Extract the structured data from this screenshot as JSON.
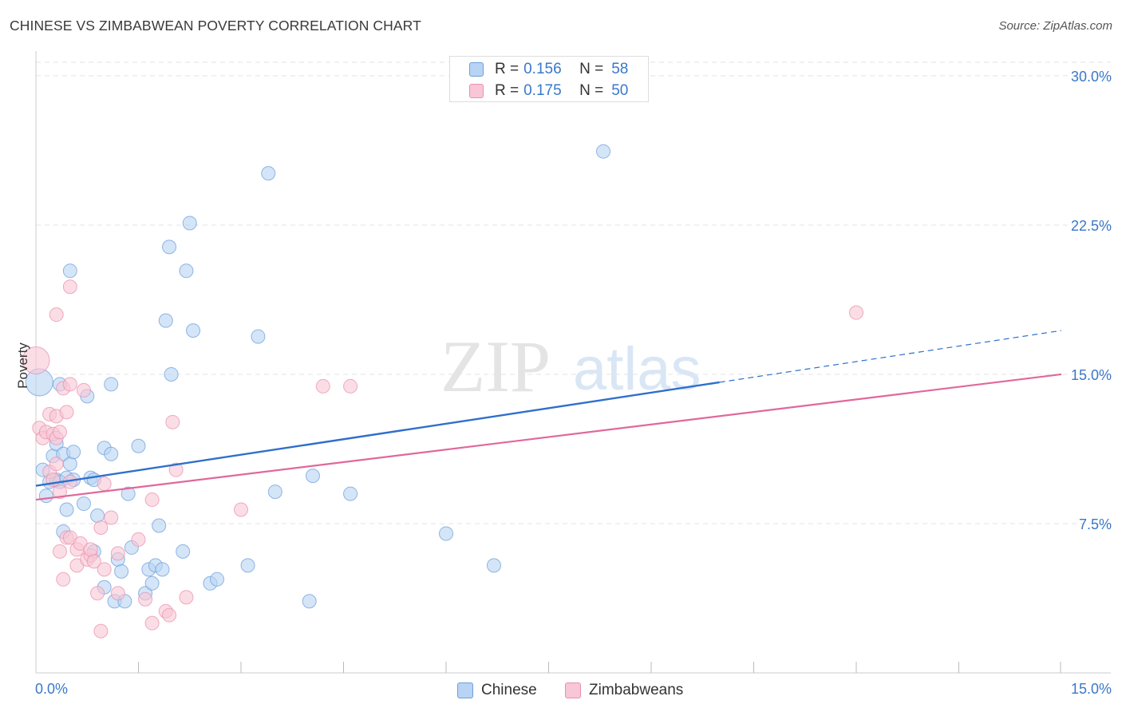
{
  "title": "CHINESE VS ZIMBABWEAN POVERTY CORRELATION CHART",
  "source": "Source: ZipAtlas.com",
  "watermark": {
    "zip": "ZIP",
    "atlas": "atlas"
  },
  "colors": {
    "chinese_fill": "#b8d3f4",
    "chinese_stroke": "#6e9fdb",
    "chinese_line": "#2f6fcb",
    "zimbabwean_fill": "#f8c6d6",
    "zimbabwean_stroke": "#e991ac",
    "zimbabwean_line": "#e0689a",
    "axis_label": "#3a78c9",
    "grid": "#e3e3e3"
  },
  "legend_top": {
    "rows": [
      {
        "r_label": "R =",
        "r_value": "0.156",
        "n_label": "N =",
        "n_value": "58"
      },
      {
        "r_label": "R =",
        "r_value": "0.175",
        "n_label": "N =",
        "n_value": "50"
      }
    ]
  },
  "legend_bottom": [
    "Chinese",
    "Zimbabweans"
  ],
  "chart_data": {
    "type": "scatter",
    "title": "CHINESE VS ZIMBABWEAN POVERTY CORRELATION CHART",
    "xlabel": "",
    "ylabel": "Poverty",
    "xlim": [
      0,
      15
    ],
    "ylim": [
      0,
      31
    ],
    "x_tick_labels": [
      {
        "value": 0,
        "label": "0.0%"
      },
      {
        "value": 15,
        "label": "15.0%"
      }
    ],
    "y_tick_labels": [
      {
        "value": 7.5,
        "label": "7.5%"
      },
      {
        "value": 15,
        "label": "15.0%"
      },
      {
        "value": 22.5,
        "label": "22.5%"
      },
      {
        "value": 30,
        "label": "30.0%"
      }
    ],
    "x_minor_ticks": [
      1.5,
      3,
      4.5,
      6,
      7.5,
      9,
      10.5,
      12,
      13.5,
      15
    ],
    "series": [
      {
        "name": "Chinese",
        "r": 0.156,
        "n": 58,
        "trend": {
          "x0": 0,
          "y0": 9.4,
          "x1": 10,
          "y1": 14.6,
          "dash_to_x": 15,
          "dash_to_y": 17.2
        },
        "points": [
          [
            0.05,
            14.6,
            3
          ],
          [
            0.1,
            10.2,
            1
          ],
          [
            0.15,
            8.9,
            1
          ],
          [
            0.2,
            9.6,
            1
          ],
          [
            0.25,
            10.9,
            1
          ],
          [
            0.3,
            11.5,
            1
          ],
          [
            0.3,
            9.7,
            1
          ],
          [
            0.35,
            9.6,
            1
          ],
          [
            0.35,
            14.5,
            1
          ],
          [
            0.4,
            11.0,
            1
          ],
          [
            0.4,
            7.1,
            1
          ],
          [
            0.45,
            9.8,
            1
          ],
          [
            0.45,
            8.2,
            1
          ],
          [
            0.5,
            10.5,
            1
          ],
          [
            0.55,
            9.7,
            1
          ],
          [
            0.55,
            11.1,
            1
          ],
          [
            0.5,
            20.2,
            1
          ],
          [
            0.7,
            8.5,
            1
          ],
          [
            0.75,
            13.9,
            1
          ],
          [
            0.8,
            9.8,
            1
          ],
          [
            0.85,
            6.1,
            1
          ],
          [
            0.85,
            9.7,
            1
          ],
          [
            0.9,
            7.9,
            1
          ],
          [
            1.0,
            4.3,
            1
          ],
          [
            1.0,
            11.3,
            1
          ],
          [
            1.1,
            14.5,
            1
          ],
          [
            1.1,
            11.0,
            1
          ],
          [
            1.15,
            3.6,
            1
          ],
          [
            1.2,
            5.7,
            1
          ],
          [
            1.25,
            5.1,
            1
          ],
          [
            1.3,
            3.6,
            1
          ],
          [
            1.35,
            9.0,
            1
          ],
          [
            1.4,
            6.3,
            1
          ],
          [
            1.5,
            11.4,
            1
          ],
          [
            1.6,
            4.0,
            1
          ],
          [
            1.65,
            5.2,
            1
          ],
          [
            1.7,
            4.5,
            1
          ],
          [
            1.75,
            5.4,
            1
          ],
          [
            1.8,
            7.4,
            1
          ],
          [
            1.85,
            5.2,
            1
          ],
          [
            1.9,
            17.7,
            1
          ],
          [
            1.95,
            21.4,
            1
          ],
          [
            1.98,
            15.0,
            1
          ],
          [
            2.15,
            6.1,
            1
          ],
          [
            2.2,
            20.2,
            1
          ],
          [
            2.25,
            22.6,
            1
          ],
          [
            2.3,
            17.2,
            1
          ],
          [
            2.55,
            4.5,
            1
          ],
          [
            2.65,
            4.7,
            1
          ],
          [
            3.1,
            5.4,
            1
          ],
          [
            3.25,
            16.9,
            1
          ],
          [
            3.4,
            25.1,
            1
          ],
          [
            3.5,
            9.1,
            1
          ],
          [
            4.0,
            3.6,
            1
          ],
          [
            4.05,
            9.9,
            1
          ],
          [
            4.6,
            9.0,
            1
          ],
          [
            6.0,
            7.0,
            1
          ],
          [
            6.7,
            5.4,
            1
          ],
          [
            8.3,
            26.2,
            1
          ]
        ]
      },
      {
        "name": "Zimbabweans",
        "r": 0.175,
        "n": 50,
        "trend": {
          "x0": 0,
          "y0": 8.7,
          "x1": 15,
          "y1": 15.0
        },
        "points": [
          [
            0.0,
            15.7,
            3
          ],
          [
            0.05,
            12.3,
            1
          ],
          [
            0.1,
            11.8,
            1
          ],
          [
            0.15,
            12.1,
            1
          ],
          [
            0.2,
            10.1,
            1
          ],
          [
            0.2,
            13.0,
            1
          ],
          [
            0.25,
            12.0,
            1
          ],
          [
            0.25,
            9.7,
            1
          ],
          [
            0.3,
            12.9,
            1
          ],
          [
            0.3,
            11.8,
            1
          ],
          [
            0.3,
            10.5,
            1
          ],
          [
            0.35,
            9.1,
            1
          ],
          [
            0.3,
            18.0,
            1
          ],
          [
            0.35,
            12.1,
            1
          ],
          [
            0.4,
            14.3,
            1
          ],
          [
            0.45,
            13.1,
            1
          ],
          [
            0.5,
            9.6,
            1
          ],
          [
            0.35,
            6.1,
            1
          ],
          [
            0.4,
            4.7,
            1
          ],
          [
            0.45,
            6.8,
            1
          ],
          [
            0.5,
            6.8,
            1
          ],
          [
            0.5,
            14.5,
            1
          ],
          [
            0.5,
            19.4,
            1
          ],
          [
            0.6,
            6.2,
            1
          ],
          [
            0.6,
            5.4,
            1
          ],
          [
            0.65,
            6.5,
            1
          ],
          [
            0.7,
            14.2,
            1
          ],
          [
            0.75,
            5.7,
            1
          ],
          [
            0.8,
            5.9,
            1
          ],
          [
            0.8,
            6.2,
            1
          ],
          [
            0.85,
            5.6,
            1
          ],
          [
            0.9,
            4.0,
            1
          ],
          [
            0.95,
            7.3,
            1
          ],
          [
            0.95,
            2.1,
            1
          ],
          [
            1.0,
            5.2,
            1
          ],
          [
            1.0,
            9.5,
            1
          ],
          [
            1.1,
            7.8,
            1
          ],
          [
            1.2,
            4.0,
            1
          ],
          [
            1.2,
            6.0,
            1
          ],
          [
            1.5,
            6.7,
            1
          ],
          [
            1.6,
            3.7,
            1
          ],
          [
            1.7,
            8.7,
            1
          ],
          [
            1.7,
            2.5,
            1
          ],
          [
            1.9,
            3.1,
            1
          ],
          [
            1.95,
            2.9,
            1
          ],
          [
            2.0,
            12.6,
            1
          ],
          [
            2.05,
            10.2,
            1
          ],
          [
            2.2,
            3.8,
            1
          ],
          [
            3.0,
            8.2,
            1
          ],
          [
            4.2,
            14.4,
            1
          ],
          [
            4.6,
            14.4,
            1
          ],
          [
            12.0,
            18.1,
            1
          ]
        ]
      }
    ]
  }
}
